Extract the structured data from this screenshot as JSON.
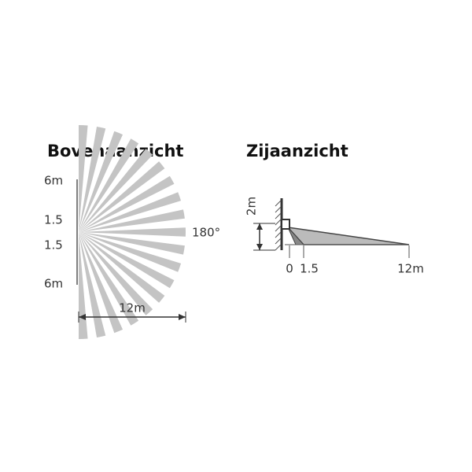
{
  "top_view": {
    "title": "Bovenaanzicht",
    "left_labels": [
      "6m",
      "1.5",
      "1.5",
      "6m"
    ],
    "angle_label": "180°",
    "width_label": "12m"
  },
  "side_view": {
    "title": "Zijaanzicht",
    "height_label": "2m",
    "distance_labels": [
      "0",
      "1.5",
      "12m"
    ]
  }
}
